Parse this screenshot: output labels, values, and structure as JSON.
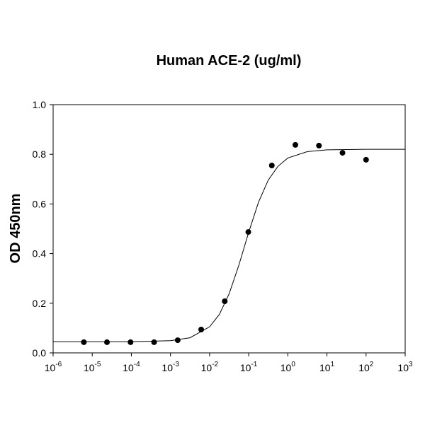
{
  "chart_data": {
    "type": "scatter",
    "title": "Human ACE-2 (ug/ml)",
    "y_label": "OD 450nm",
    "x_scale": "log",
    "color": "#000000",
    "x": [
      6.1e-06,
      2.38e-05,
      9.54e-05,
      0.000381,
      0.00153,
      0.0061,
      0.0244,
      0.0977,
      0.39,
      1.56,
      6.25,
      25,
      100
    ],
    "values": [
      0.043,
      0.043,
      0.043,
      0.043,
      0.051,
      0.094,
      0.208,
      0.487,
      0.755,
      0.838,
      0.835,
      0.806,
      0.778
    ],
    "curve": {
      "x": [
        1e-06,
        1e-05,
        0.0001,
        0.001,
        0.00316,
        0.01,
        0.0178,
        0.0316,
        0.0562,
        0.1,
        0.178,
        0.316,
        0.562,
        1,
        3.16,
        10,
        100,
        1000
      ],
      "y": [
        0.045,
        0.045,
        0.045,
        0.049,
        0.061,
        0.105,
        0.155,
        0.238,
        0.354,
        0.486,
        0.607,
        0.696,
        0.752,
        0.785,
        0.811,
        0.818,
        0.82,
        0.82
      ]
    },
    "xlim": [
      1e-06,
      1000
    ],
    "ylim": [
      0,
      1
    ],
    "xticks": [
      {
        "value": 1e-06,
        "label": "10",
        "exponent": "-6"
      },
      {
        "value": 1e-05,
        "label": "10",
        "exponent": "-5"
      },
      {
        "value": 0.0001,
        "label": "10",
        "exponent": "-4"
      },
      {
        "value": 0.001,
        "label": "10",
        "exponent": "-3"
      },
      {
        "value": 0.01,
        "label": "10",
        "exponent": "-2"
      },
      {
        "value": 0.1,
        "label": "10",
        "exponent": "-1"
      },
      {
        "value": 1,
        "label": "10",
        "exponent": "0"
      },
      {
        "value": 10,
        "label": "10",
        "exponent": "1"
      },
      {
        "value": 100,
        "label": "10",
        "exponent": "2"
      },
      {
        "value": 1000,
        "label": "10",
        "exponent": "3"
      }
    ],
    "yticks": [
      {
        "value": 0,
        "label": "0.0"
      },
      {
        "value": 0.2,
        "label": "0.2"
      },
      {
        "value": 0.4,
        "label": "0.4"
      },
      {
        "value": 0.6,
        "label": "0.6"
      },
      {
        "value": 0.8,
        "label": "0.8"
      },
      {
        "value": 1,
        "label": "1.0"
      }
    ]
  }
}
